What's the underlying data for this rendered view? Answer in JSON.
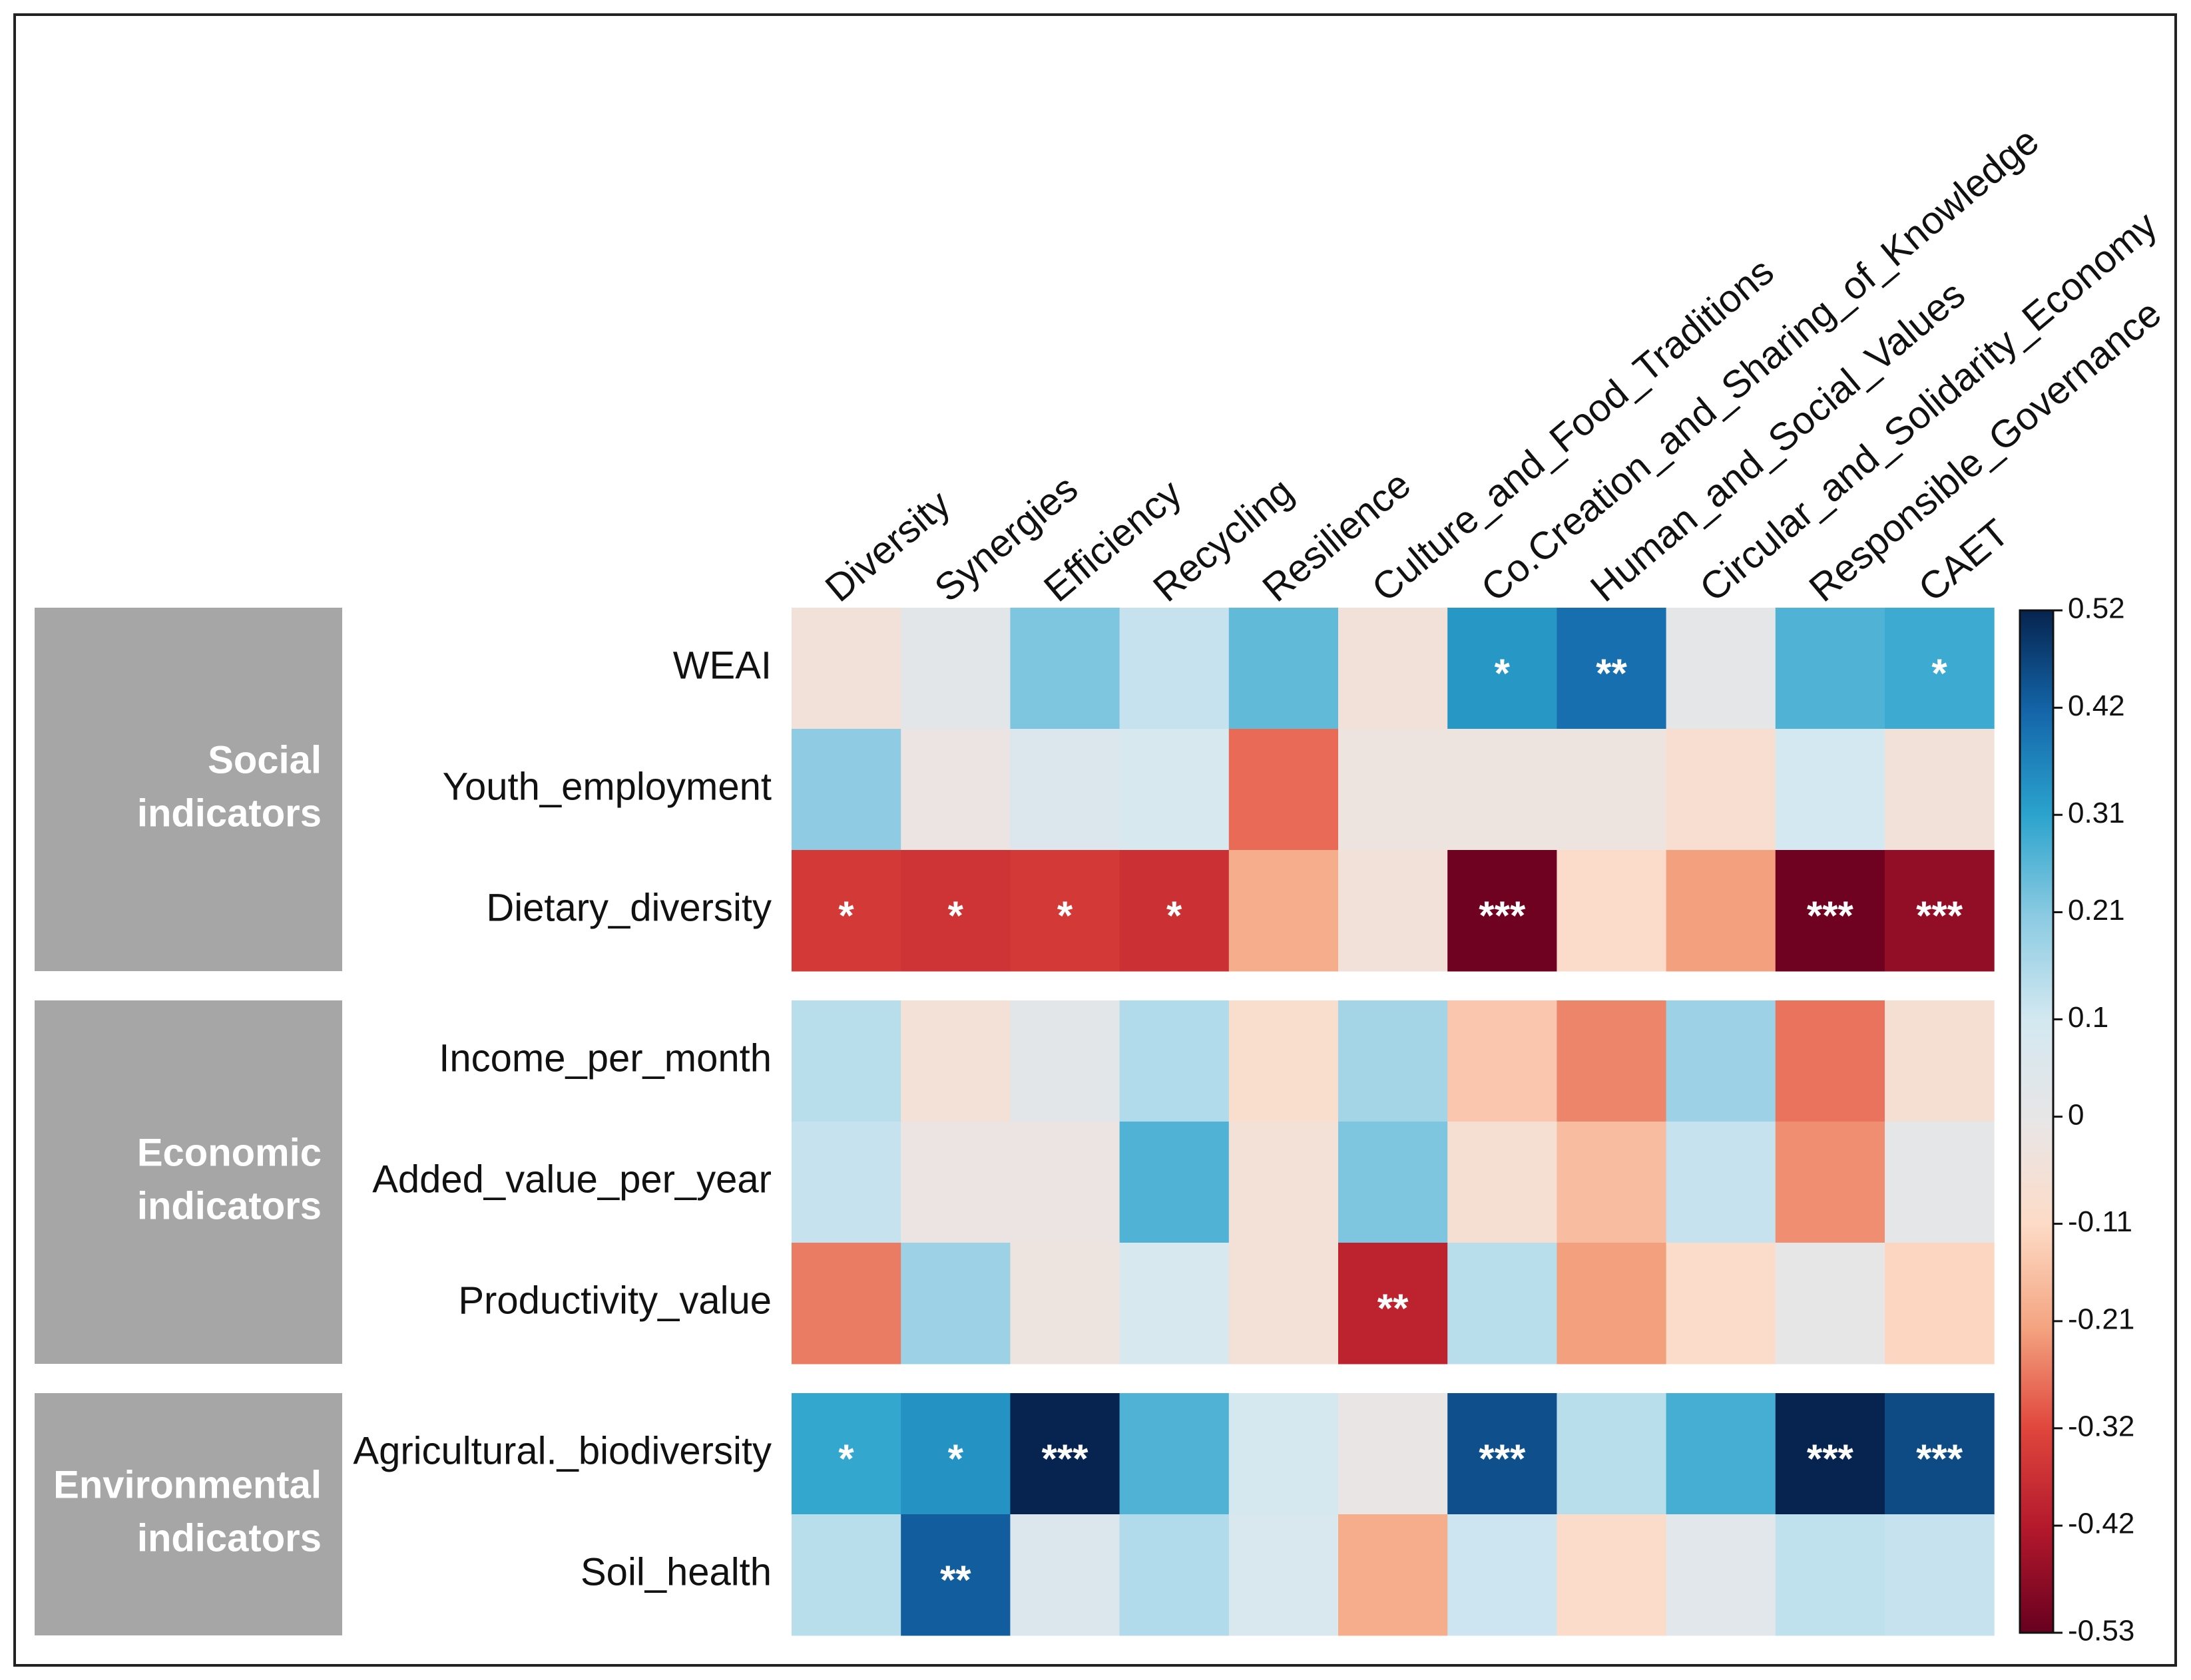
{
  "chart_data": {
    "type": "heatmap",
    "columns": [
      "Diversity",
      "Synergies",
      "Efficiency",
      "Recycling",
      "Resilience",
      "Culture_and_Food_Traditions",
      "Co.Creation_and_Sharing_of_Knowledge",
      "Human_and_Social_Values",
      "Circular_and_Solidarity_Economy",
      "Responsible_Governance",
      "CAET"
    ],
    "rows": [
      "WEAI",
      "Youth_employment",
      "Dietary_diversity",
      "Income_per_month",
      "Added_value_per_year",
      "Productivity_value",
      "Agricultural._biodiversity",
      "Soil_health"
    ],
    "row_groups": [
      {
        "label": [
          "Social",
          "indicators"
        ],
        "size": 3
      },
      {
        "label": [
          "Economic",
          "indicators"
        ],
        "size": 3
      },
      {
        "label": [
          "Environmental",
          "indicators"
        ],
        "size": 2
      }
    ],
    "values": [
      [
        -0.05,
        0.02,
        0.22,
        0.12,
        0.25,
        -0.05,
        0.33,
        0.4,
        0.01,
        0.27,
        0.29
      ],
      [
        0.2,
        -0.02,
        0.06,
        0.08,
        -0.28,
        -0.03,
        -0.03,
        -0.03,
        -0.08,
        0.1,
        -0.05
      ],
      [
        -0.35,
        -0.36,
        -0.35,
        -0.37,
        -0.2,
        -0.05,
        -0.52,
        -0.1,
        -0.22,
        -0.52,
        -0.47
      ],
      [
        0.14,
        -0.06,
        0.02,
        0.15,
        -0.09,
        0.17,
        -0.15,
        -0.25,
        0.18,
        -0.27,
        -0.07
      ],
      [
        0.12,
        -0.02,
        -0.02,
        0.27,
        -0.06,
        0.22,
        -0.07,
        -0.17,
        0.12,
        -0.24,
        0.01
      ],
      [
        -0.26,
        0.18,
        -0.03,
        0.08,
        -0.06,
        -0.4,
        0.14,
        -0.22,
        -0.1,
        0.0,
        -0.12
      ],
      [
        0.3,
        0.34,
        0.52,
        0.27,
        0.09,
        -0.01,
        0.45,
        0.14,
        0.28,
        0.52,
        0.46
      ],
      [
        0.14,
        0.43,
        0.06,
        0.15,
        0.07,
        -0.2,
        0.11,
        -0.1,
        0.03,
        0.13,
        0.12
      ]
    ],
    "annotations": [
      [
        null,
        null,
        null,
        null,
        null,
        null,
        "*",
        "**",
        null,
        null,
        "*"
      ],
      [
        null,
        null,
        null,
        null,
        null,
        null,
        null,
        null,
        null,
        null,
        null
      ],
      [
        "*",
        "*",
        "*",
        "*",
        null,
        null,
        "***",
        null,
        null,
        "***",
        "***"
      ],
      [
        null,
        null,
        null,
        null,
        null,
        null,
        null,
        null,
        null,
        null,
        null
      ],
      [
        null,
        null,
        null,
        null,
        null,
        null,
        null,
        null,
        null,
        null,
        null
      ],
      [
        null,
        null,
        null,
        null,
        null,
        "**",
        null,
        null,
        null,
        null,
        null
      ],
      [
        "*",
        "*",
        "***",
        null,
        null,
        null,
        "***",
        null,
        null,
        "***",
        "***"
      ],
      [
        null,
        "**",
        null,
        null,
        null,
        null,
        null,
        null,
        null,
        null,
        null
      ]
    ],
    "clim": [
      -0.53,
      0.52
    ],
    "cticks": [
      0.52,
      0.42,
      0.31,
      0.21,
      0.1,
      0,
      -0.11,
      -0.21,
      -0.32,
      -0.42,
      -0.53
    ],
    "colormap": [
      "#67001f",
      "#b2182b",
      "#e0463c",
      "#f4a582",
      "#fddbc7",
      "#e8e6e6",
      "#d3e8f1",
      "#8ccbe2",
      "#2ba3cd",
      "#1466aa",
      "#06244f"
    ]
  }
}
